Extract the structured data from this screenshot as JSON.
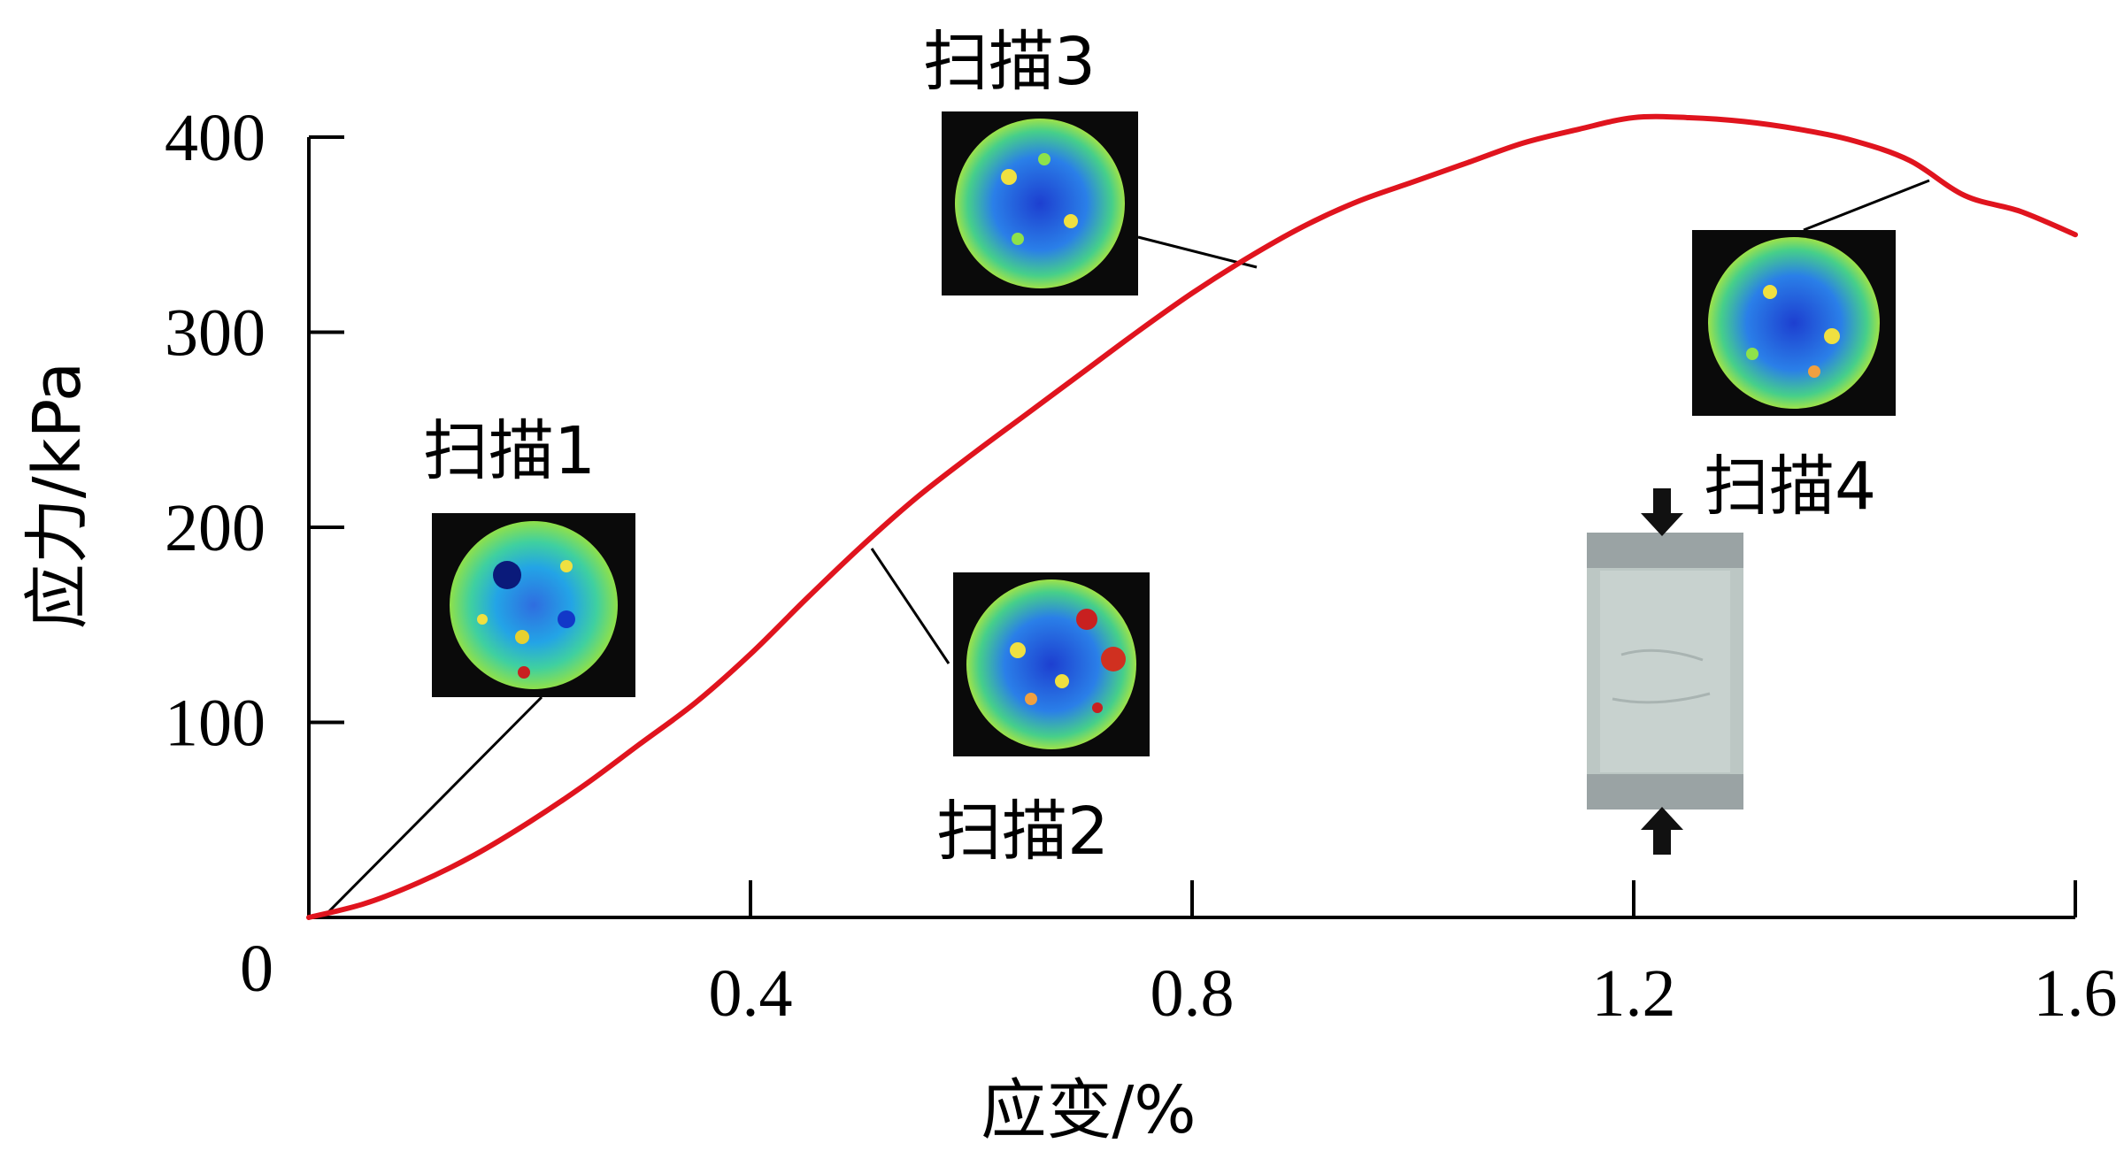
{
  "chart_data": {
    "type": "line",
    "xlabel": "应变/%",
    "ylabel": "应力/kPa",
    "xlim": [
      0,
      1.6
    ],
    "ylim": [
      0,
      400
    ],
    "x_ticks": [
      "0.4",
      "0.8",
      "1.2",
      "1.6"
    ],
    "y_ticks": [
      "100",
      "200",
      "300",
      "400"
    ],
    "origin_label": "0",
    "grid": false,
    "series": [
      {
        "color": "#e0141e",
        "x": [
          0,
          0.05,
          0.1,
          0.15,
          0.2,
          0.25,
          0.3,
          0.35,
          0.4,
          0.45,
          0.5,
          0.55,
          0.6,
          0.65,
          0.7,
          0.75,
          0.8,
          0.85,
          0.9,
          0.95,
          1.0,
          1.05,
          1.1,
          1.15,
          1.2,
          1.25,
          1.3,
          1.35,
          1.4,
          1.45,
          1.5,
          1.55,
          1.6
        ],
        "y": [
          0,
          7,
          18,
          32,
          49,
          68,
          89,
          110,
          135,
          163,
          190,
          215,
          237,
          258,
          279,
          300,
          320,
          338,
          354,
          367,
          377,
          387,
          397,
          404,
          410,
          410,
          408,
          404,
          398,
          388,
          370,
          362,
          350
        ]
      }
    ],
    "annotations": [
      {
        "label": "扫描1",
        "x": 0.02,
        "y": 0
      },
      {
        "label": "扫描2",
        "x": 0.5,
        "y": 190
      },
      {
        "label": "扫描3",
        "x": 0.85,
        "y": 335
      },
      {
        "label": "扫描4",
        "x": 1.46,
        "y": 379
      }
    ]
  },
  "scans": [
    {
      "label": "扫描1"
    },
    {
      "label": "扫描2"
    },
    {
      "label": "扫描3"
    },
    {
      "label": "扫描4"
    }
  ]
}
